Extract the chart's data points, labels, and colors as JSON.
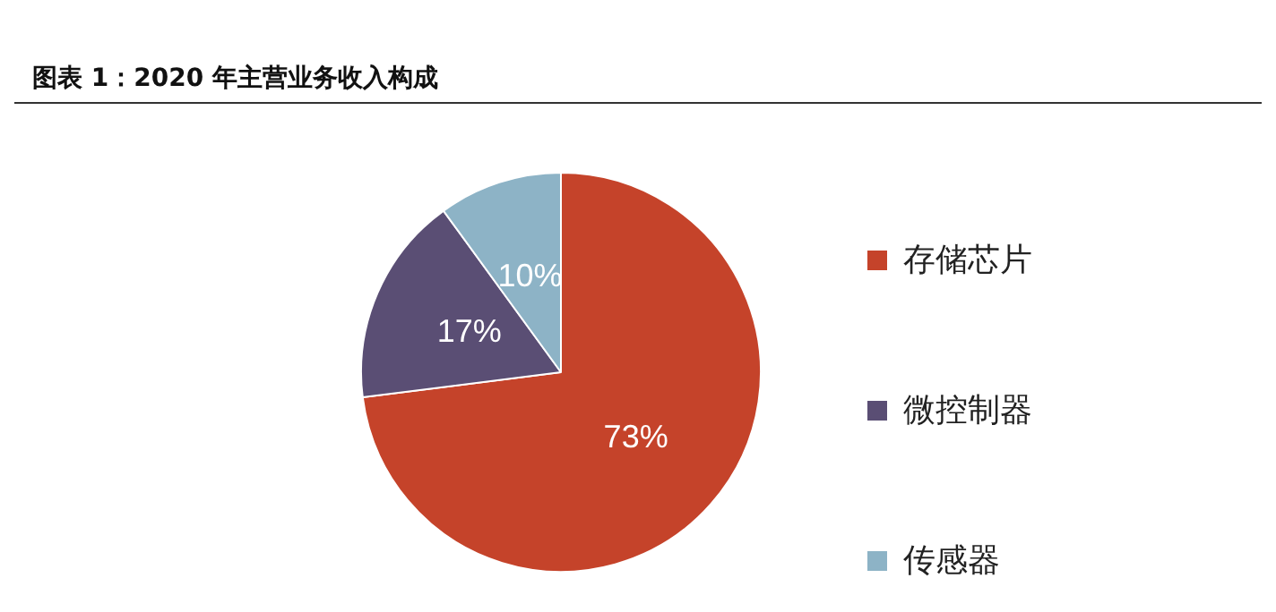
{
  "chart_data": {
    "type": "pie",
    "title": "图表 1：2020 年主营业务收入构成",
    "categories": [
      "存储芯片",
      "微控制器",
      "传感器"
    ],
    "values": [
      73,
      17,
      10
    ],
    "colors": [
      "#c5432a",
      "#5a4e74",
      "#8db3c6"
    ],
    "value_labels": [
      "73%",
      "17%",
      "10%"
    ],
    "legend": "right"
  }
}
